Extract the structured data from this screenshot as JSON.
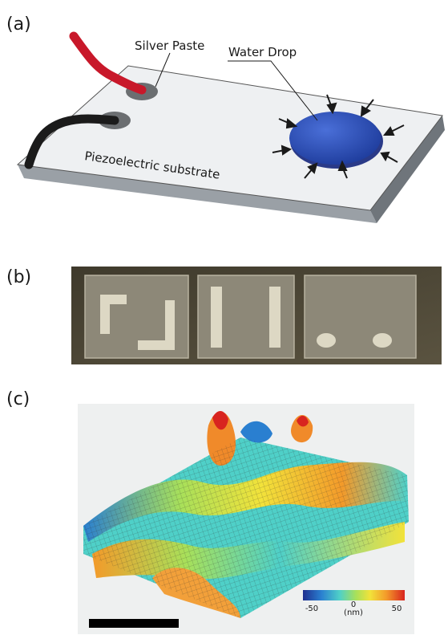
{
  "panels": {
    "a": {
      "label": "(a)",
      "annotations": {
        "silver_paste": "Silver Paste",
        "water_drop": "Water Drop",
        "substrate": "Piezoelectric substrate"
      }
    },
    "b": {
      "label": "(b)"
    },
    "c": {
      "label": "(c)",
      "colorbar": {
        "ticks": [
          "-50",
          "0",
          "50"
        ],
        "unit": "(nm)",
        "colors": [
          "#1f2f8f",
          "#2a7fd0",
          "#4fd0c8",
          "#a8e05a",
          "#f2e23a",
          "#f39a2a",
          "#d8241f"
        ]
      }
    }
  }
}
